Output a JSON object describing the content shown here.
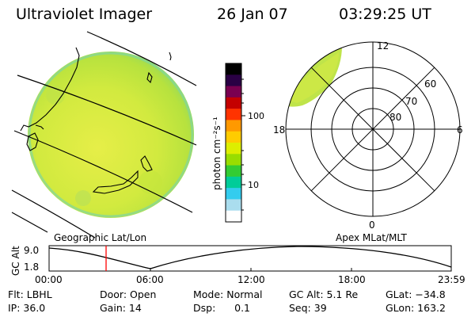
{
  "header": {
    "title": "Ultraviolet Imager",
    "date": "26 Jan 07",
    "time": "03:29:25 UT"
  },
  "left_panel": {
    "caption": "Geographic Lat/Lon"
  },
  "right_panel": {
    "caption": "Apex MLat/MLT",
    "mlt_labels": {
      "top": "12",
      "left": "18",
      "right": "6",
      "bottom": "0"
    },
    "lat_labels": [
      "60",
      "70",
      "80"
    ]
  },
  "colorbar": {
    "unit_label": "photon cm⁻²s⁻¹",
    "tick_labels": [
      "100",
      "10"
    ],
    "colors": [
      "#000000",
      "#2a0044",
      "#7a0050",
      "#c40000",
      "#ff3300",
      "#ff9900",
      "#ffcc00",
      "#ddee00",
      "#99dd00",
      "#33cc33",
      "#00cc99",
      "#33ccee",
      "#aaddee",
      "#ffffff"
    ]
  },
  "altitude_plot": {
    "ylabel": "GC Alt",
    "ymax_label": "9.0",
    "ymin_label": "1.8",
    "x_labels": [
      "00:00",
      "06:00",
      "12:00",
      "18:00",
      "23:59"
    ]
  },
  "info": {
    "filter": "Flt: LBHL",
    "door": "Door: Open",
    "mode": "Mode: Normal",
    "gc_alt": "GC Alt: 5.1 Re",
    "glat": "GLat: −34.8",
    "ip": "IP: 36.0",
    "gain": "Gain: 14",
    "dsp": "Dsp:      0.1",
    "seq": "Seq: 39",
    "glon": "GLon: 163.2"
  }
}
